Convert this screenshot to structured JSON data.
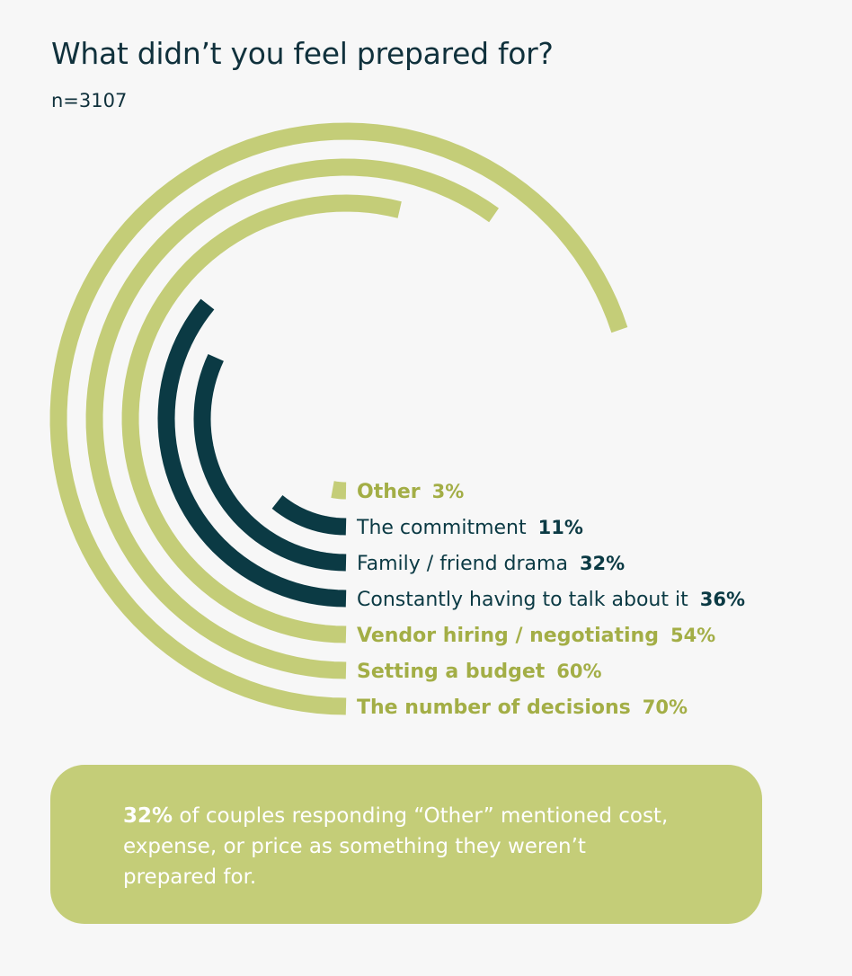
{
  "title": "What didn’t you feel prepared for?",
  "subtitle": "n=3107",
  "colors": {
    "green": "#c4cd78",
    "dark": "#0b3a44",
    "green_text": "#a3ae46"
  },
  "chart_data": {
    "type": "radial-bar",
    "title": "What didn’t you feel prepared for?",
    "unit": "%",
    "scale_max": 100,
    "series": [
      {
        "label": "Other",
        "value": 3,
        "value_label": "3%",
        "color": "green"
      },
      {
        "label": "The commitment",
        "value": 11,
        "value_label": "11%",
        "color": "dark"
      },
      {
        "label": "Family / friend drama",
        "value": 32,
        "value_label": "32%",
        "color": "dark"
      },
      {
        "label": "Constantly having to talk about it",
        "value": 36,
        "value_label": "36%",
        "color": "dark"
      },
      {
        "label": "Vendor hiring / negotiating",
        "value": 54,
        "value_label": "54%",
        "color": "green"
      },
      {
        "label": "Setting a budget",
        "value": 60,
        "value_label": "60%",
        "color": "green"
      },
      {
        "label": "The number of decisions",
        "value": 70,
        "value_label": "70%",
        "color": "green"
      }
    ]
  },
  "callout": {
    "highlight": "32%",
    "text": " of couples responding “Other” mentioned cost, expense, or price as something they weren’t prepared for."
  }
}
